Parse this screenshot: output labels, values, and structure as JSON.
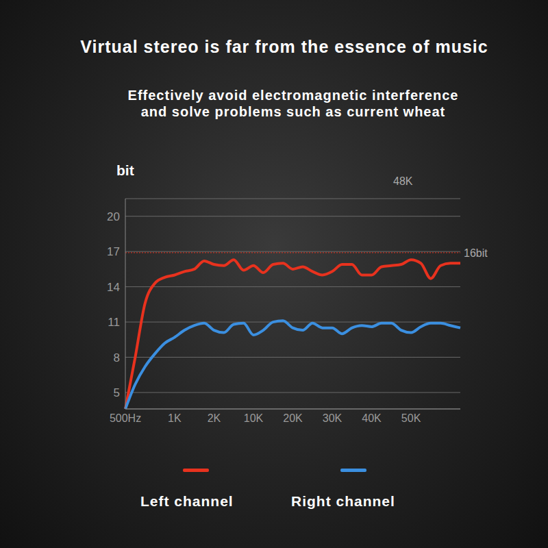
{
  "chart_data": {
    "type": "line",
    "title": "Virtual stereo is far from the essence of music",
    "subtitle": [
      "Effectively avoid electromagnetic interference",
      "and solve problems such as current wheat"
    ],
    "y_label": "bit",
    "categories": [
      "500Hz",
      null,
      null,
      null,
      null,
      "1K",
      null,
      null,
      null,
      "2K",
      null,
      null,
      null,
      "10K",
      null,
      null,
      null,
      "20K",
      null,
      null,
      null,
      "30K",
      null,
      null,
      null,
      "40K",
      null,
      null,
      null,
      "50K",
      null,
      null,
      null,
      null,
      null
    ],
    "series": [
      {
        "name": "Left channel",
        "color": "#e8321e",
        "values": [
          3.6,
          8.0,
          12.6,
          14.3,
          14.8,
          15.0,
          15.3,
          15.5,
          16.2,
          15.9,
          15.8,
          16.3,
          15.4,
          15.8,
          15.2,
          15.9,
          16.0,
          15.5,
          15.7,
          15.3,
          15.0,
          15.3,
          15.9,
          15.9,
          15.0,
          15.0,
          15.7,
          15.8,
          15.9,
          16.3,
          16.0,
          14.7,
          15.8,
          16.0,
          16.0
        ]
      },
      {
        "name": "Right channel",
        "color": "#3b8fe0",
        "values": [
          3.6,
          5.7,
          7.2,
          8.3,
          9.2,
          9.7,
          10.3,
          10.7,
          10.9,
          10.3,
          10.1,
          10.8,
          10.9,
          9.9,
          10.3,
          11.0,
          11.1,
          10.5,
          10.3,
          10.9,
          10.5,
          10.5,
          10.0,
          10.5,
          10.7,
          10.6,
          10.9,
          10.9,
          10.3,
          10.1,
          10.6,
          10.9,
          10.9,
          10.7,
          10.5
        ]
      }
    ],
    "ylim": [
      3.6,
      21.5
    ],
    "yticks": [
      5,
      8,
      11,
      14,
      17,
      20
    ],
    "grid": true,
    "legend": "bottom",
    "annotations": [
      {
        "text": "48K"
      },
      {
        "text": "16bit",
        "y": 16.9
      }
    ]
  }
}
